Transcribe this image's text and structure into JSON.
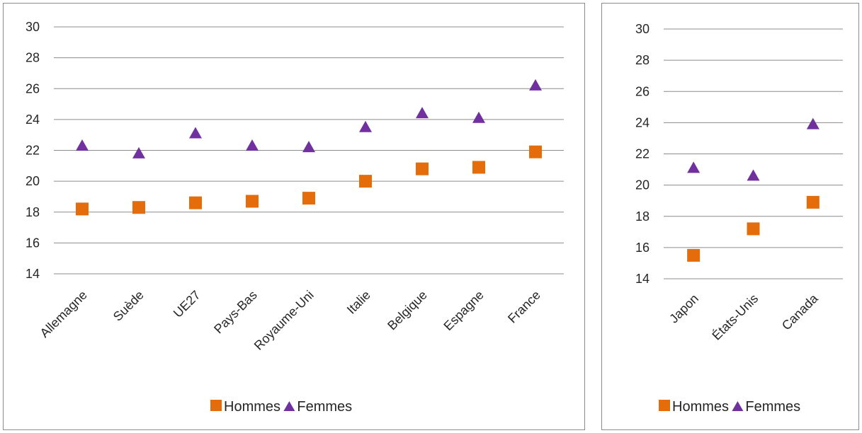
{
  "colors": {
    "hommes": "#e46c0a",
    "femmes": "#7030a0",
    "grid": "#8c8c8c",
    "text": "#262626"
  },
  "chart_data": [
    {
      "type": "scatter",
      "categories": [
        "Allemagne",
        "Suède",
        "UE27",
        "Pays-Bas",
        "Royaume-Uni",
        "Italie",
        "Belgique",
        "Espagne",
        "France"
      ],
      "ylim": [
        14,
        30
      ],
      "yticks": [
        14,
        16,
        18,
        20,
        22,
        24,
        26,
        28,
        30
      ],
      "grid": true,
      "legend_position": "bottom",
      "series": [
        {
          "name": "Hommes",
          "marker": "square",
          "values": [
            18.2,
            18.3,
            18.6,
            18.7,
            18.9,
            20.0,
            20.8,
            20.9,
            21.9
          ]
        },
        {
          "name": "Femmes",
          "marker": "triangle",
          "values": [
            22.3,
            21.8,
            23.1,
            22.3,
            22.2,
            23.5,
            24.4,
            24.1,
            26.2
          ]
        }
      ]
    },
    {
      "type": "scatter",
      "categories": [
        "Japon",
        "États-Unis",
        "Canada"
      ],
      "ylim": [
        14,
        30
      ],
      "yticks": [
        14,
        16,
        18,
        20,
        22,
        24,
        26,
        28,
        30
      ],
      "grid": true,
      "legend_position": "bottom",
      "series": [
        {
          "name": "Hommes",
          "marker": "square",
          "values": [
            15.5,
            17.2,
            18.9
          ]
        },
        {
          "name": "Femmes",
          "marker": "triangle",
          "values": [
            21.1,
            20.6,
            23.9
          ]
        }
      ]
    }
  ]
}
